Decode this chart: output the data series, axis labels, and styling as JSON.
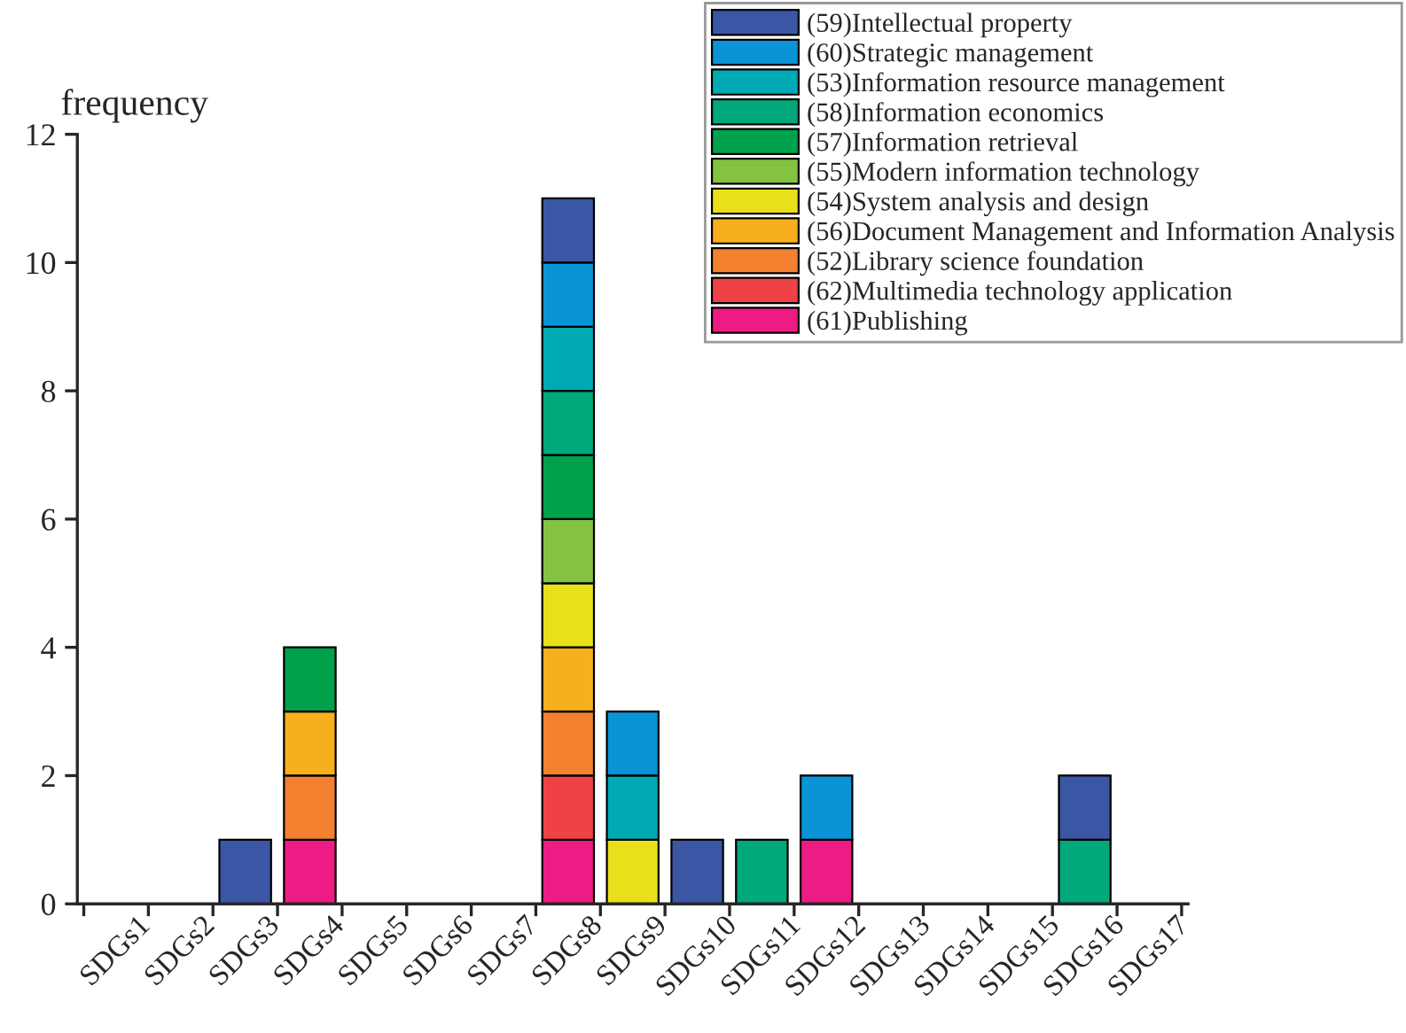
{
  "chart_data": {
    "type": "bar",
    "stacked": true,
    "ylabel": "frequency",
    "categories": [
      "SDGs1",
      "SDGs2",
      "SDGs3",
      "SDGs4",
      "SDGs5",
      "SDGs6",
      "SDGs7",
      "SDGs8",
      "SDGs9",
      "SDGs10",
      "SDGs11",
      "SDGs12",
      "SDGs13",
      "SDGs14",
      "SDGs15",
      "SDGs16",
      "SDGs17"
    ],
    "ylim": [
      0,
      12
    ],
    "yticks": [
      0,
      2,
      4,
      6,
      8,
      10,
      12
    ],
    "grid": false,
    "legend": "top right",
    "series": [
      {
        "name": "(61)Publishing",
        "color": "#ec1c84",
        "values": [
          null,
          null,
          null,
          1,
          null,
          null,
          null,
          1,
          null,
          null,
          null,
          1,
          null,
          null,
          null,
          null,
          null
        ]
      },
      {
        "name": "(62)Multimedia technology application",
        "color": "#ee4246",
        "values": [
          null,
          null,
          null,
          null,
          null,
          null,
          null,
          1,
          null,
          null,
          null,
          null,
          null,
          null,
          null,
          null,
          null
        ]
      },
      {
        "name": "(52)Library science foundation",
        "color": "#f38130",
        "values": [
          null,
          null,
          null,
          1,
          null,
          null,
          null,
          1,
          null,
          null,
          null,
          null,
          null,
          null,
          null,
          null,
          null
        ]
      },
      {
        "name": "(56)Document Management and Information Analysis",
        "color": "#f8af1e",
        "values": [
          null,
          null,
          null,
          1,
          null,
          null,
          null,
          1,
          null,
          null,
          null,
          null,
          null,
          null,
          null,
          null,
          null
        ]
      },
      {
        "name": "(54)System analysis and design",
        "color": "#e8e01a",
        "values": [
          null,
          null,
          null,
          null,
          null,
          null,
          null,
          1,
          1,
          null,
          null,
          null,
          null,
          null,
          null,
          null,
          null
        ]
      },
      {
        "name": "(55)Modern information technology",
        "color": "#84c341",
        "values": [
          null,
          null,
          null,
          null,
          null,
          null,
          null,
          1,
          null,
          null,
          null,
          null,
          null,
          null,
          null,
          null,
          null
        ]
      },
      {
        "name": "(57)Information retrieval",
        "color": "#00a14b",
        "values": [
          null,
          null,
          null,
          1,
          null,
          null,
          null,
          1,
          null,
          null,
          null,
          null,
          null,
          null,
          null,
          null,
          null
        ]
      },
      {
        "name": "(58)Information economics",
        "color": "#00a87a",
        "values": [
          null,
          null,
          null,
          null,
          null,
          null,
          null,
          1,
          null,
          null,
          1,
          null,
          null,
          null,
          null,
          1,
          null
        ]
      },
      {
        "name": "(53)Information resource management",
        "color": "#00aab5",
        "values": [
          null,
          null,
          null,
          null,
          null,
          null,
          null,
          1,
          1,
          null,
          null,
          null,
          null,
          null,
          null,
          null,
          null
        ]
      },
      {
        "name": "(60)Strategic management",
        "color": "#0a93d6",
        "values": [
          null,
          null,
          null,
          null,
          null,
          null,
          null,
          1,
          1,
          null,
          null,
          1,
          null,
          null,
          null,
          null,
          null
        ]
      },
      {
        "name": "(59)Intellectual property",
        "color": "#3a56a5",
        "values": [
          null,
          null,
          1,
          null,
          null,
          null,
          null,
          1,
          null,
          1,
          null,
          null,
          null,
          null,
          null,
          1,
          null
        ]
      }
    ]
  }
}
